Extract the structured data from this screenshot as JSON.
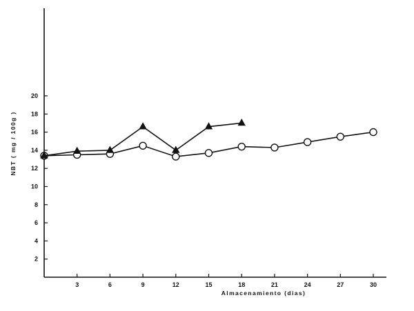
{
  "chart_data": {
    "type": "line",
    "xlabel": "Almacenamiento  (dias)",
    "ylabel": "NBT  ( mg / 100g )",
    "xlim": [
      0,
      33
    ],
    "ylim": [
      0,
      20
    ],
    "xticks": [
      3,
      6,
      9,
      12,
      15,
      18,
      21,
      24,
      27,
      30
    ],
    "yticks": [
      2,
      4,
      6,
      8,
      10,
      12,
      14,
      16,
      18,
      20
    ],
    "grid": false,
    "legend": "none",
    "series": [
      {
        "marker": "circle",
        "x": [
          0,
          3,
          6,
          9,
          12,
          15,
          18,
          21,
          24,
          27,
          30
        ],
        "y": [
          13.4,
          13.5,
          13.6,
          14.5,
          13.3,
          13.7,
          14.4,
          14.3,
          14.9,
          15.5,
          16.0
        ]
      },
      {
        "marker": "triangle",
        "x": [
          0,
          3,
          6,
          9,
          12,
          15,
          18
        ],
        "y": [
          13.4,
          13.9,
          14.0,
          16.6,
          14.0,
          16.6,
          17.0
        ]
      }
    ]
  }
}
